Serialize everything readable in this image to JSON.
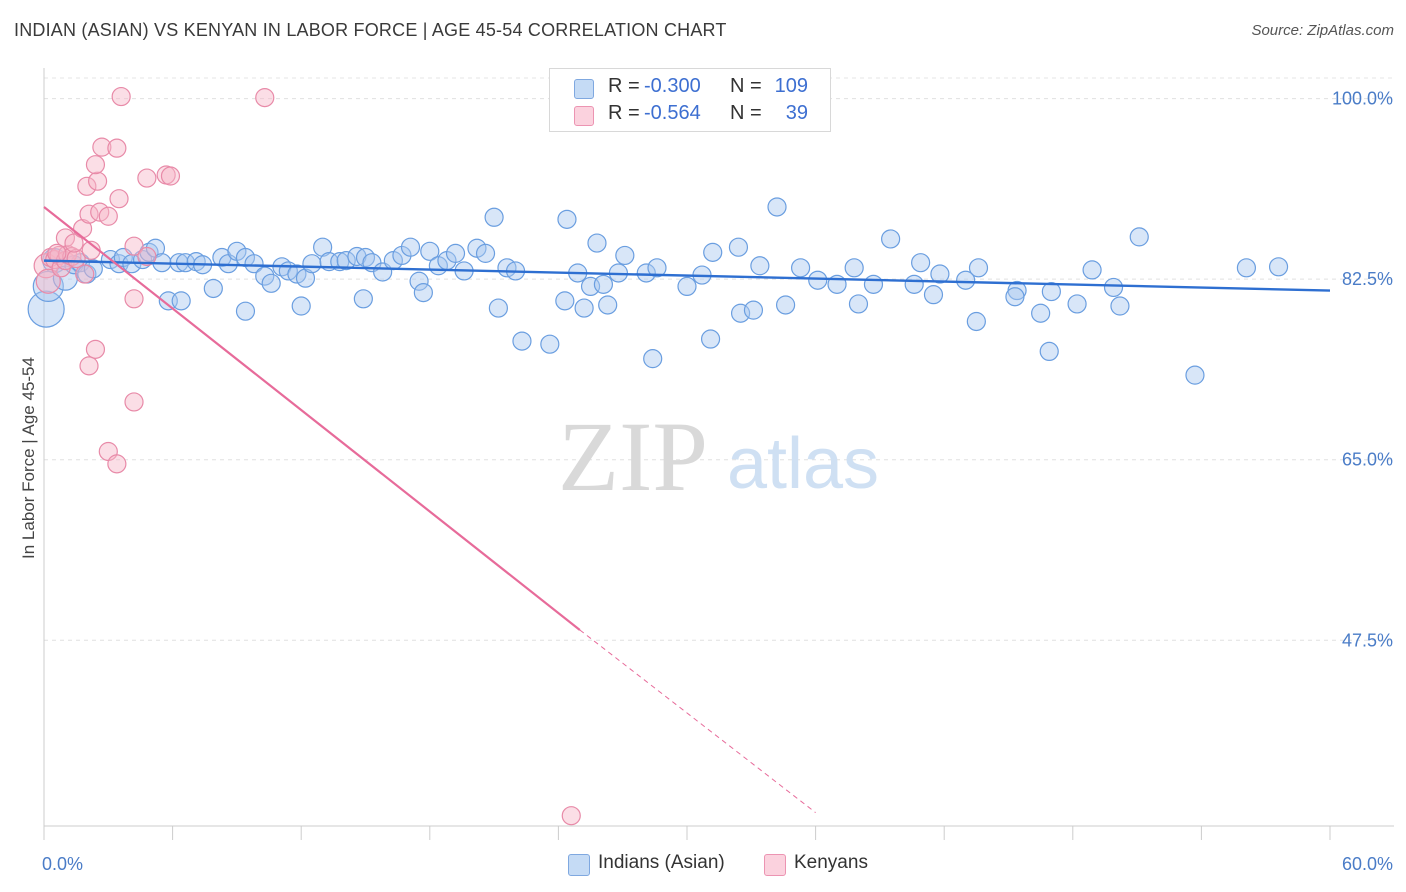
{
  "title": "INDIAN (ASIAN) VS KENYAN IN LABOR FORCE | AGE 45-54 CORRELATION CHART",
  "source": "Source: ZipAtlas.com",
  "watermark": {
    "zip": "ZIP",
    "atlas": "atlas"
  },
  "legend": {
    "rows": [
      {
        "r_label": "R =",
        "r_value": "-0.300",
        "n_label": "N =",
        "n_value": "109",
        "color": "#a8c8f0"
      },
      {
        "r_label": "R =",
        "r_value": "-0.564",
        "n_label": "N =",
        "n_value": "39",
        "color": "#f7b6c8"
      }
    ]
  },
  "bottom_legend": [
    {
      "label": "Indians (Asian)",
      "color": "#a8c8f0"
    },
    {
      "label": "Kenyans",
      "color": "#f7b6c8"
    }
  ],
  "chart_data": {
    "type": "scatter",
    "title": "INDIAN (ASIAN) VS KENYAN IN LABOR FORCE | AGE 45-54 CORRELATION CHART",
    "xlabel": "",
    "ylabel": "In Labor Force | Age 45-54",
    "xlim": [
      0,
      60
    ],
    "ylim": [
      29.5,
      102
    ],
    "x_tick_labels": [
      "0.0%",
      "60.0%"
    ],
    "y_ticks": [
      47.5,
      65.0,
      82.5,
      100.0
    ],
    "y_tick_labels": [
      "47.5%",
      "65.0%",
      "82.5%",
      "100.0%"
    ],
    "grid": true,
    "legend_position": "top-center",
    "series": [
      {
        "name": "Indians (Asian)",
        "color": "#a8c8f0",
        "stroke": "#6a9ee0",
        "trend": {
          "x": [
            0,
            60
          ],
          "y": [
            84.3,
            81.4
          ],
          "color": "#2e6fd1"
        },
        "points": [
          [
            0.1,
            79.6,
            4
          ],
          [
            0.2,
            81.8,
            3
          ],
          [
            0.5,
            84.3,
            2
          ],
          [
            1.0,
            82.6,
            2
          ],
          [
            1.4,
            83.9,
            1
          ],
          [
            1.7,
            84.1,
            1
          ],
          [
            2.0,
            83.0,
            1
          ],
          [
            2.3,
            83.5,
            1
          ],
          [
            3.1,
            84.4,
            1
          ],
          [
            3.5,
            84.0,
            1
          ],
          [
            3.7,
            84.6,
            1
          ],
          [
            4.1,
            84.0,
            1
          ],
          [
            4.6,
            84.4,
            1
          ],
          [
            4.9,
            85.1,
            1
          ],
          [
            5.2,
            85.5,
            1
          ],
          [
            5.5,
            84.1,
            1
          ],
          [
            5.8,
            80.4,
            1
          ],
          [
            6.3,
            84.1,
            1
          ],
          [
            6.6,
            84.1,
            1
          ],
          [
            7.1,
            84.2,
            1
          ],
          [
            7.4,
            83.9,
            1
          ],
          [
            7.9,
            81.6,
            1
          ],
          [
            8.3,
            84.6,
            1
          ],
          [
            8.6,
            84.0,
            1
          ],
          [
            9.0,
            85.2,
            1
          ],
          [
            9.4,
            84.6,
            1
          ],
          [
            9.8,
            84.0,
            1
          ],
          [
            10.3,
            82.8,
            1
          ],
          [
            10.6,
            82.1,
            1
          ],
          [
            11.1,
            83.7,
            1
          ],
          [
            11.4,
            83.3,
            1
          ],
          [
            11.8,
            83.0,
            1
          ],
          [
            12.2,
            82.6,
            1
          ],
          [
            12.5,
            84.0,
            1
          ],
          [
            13.0,
            85.6,
            1
          ],
          [
            13.3,
            84.2,
            1
          ],
          [
            13.8,
            84.2,
            1
          ],
          [
            14.1,
            84.3,
            1
          ],
          [
            14.6,
            84.7,
            1
          ],
          [
            15.0,
            84.6,
            1
          ],
          [
            15.3,
            84.1,
            1
          ],
          [
            15.8,
            83.2,
            1
          ],
          [
            16.3,
            84.3,
            1
          ],
          [
            16.7,
            84.8,
            1
          ],
          [
            17.1,
            85.6,
            1
          ],
          [
            17.5,
            82.3,
            1
          ],
          [
            18.0,
            85.2,
            1
          ],
          [
            18.4,
            83.8,
            1
          ],
          [
            18.8,
            84.3,
            1
          ],
          [
            19.2,
            85.0,
            1
          ],
          [
            19.6,
            83.3,
            1
          ],
          [
            20.2,
            85.5,
            1
          ],
          [
            20.6,
            85.0,
            1
          ],
          [
            21.0,
            88.5,
            1
          ],
          [
            21.6,
            83.6,
            1
          ],
          [
            22.0,
            83.3,
            1
          ],
          [
            24.4,
            88.3,
            1
          ],
          [
            24.9,
            83.1,
            1
          ],
          [
            25.5,
            81.8,
            1
          ],
          [
            25.8,
            86.0,
            1
          ],
          [
            26.1,
            82.0,
            1
          ],
          [
            26.8,
            83.1,
            1
          ],
          [
            27.1,
            84.8,
            1
          ],
          [
            28.1,
            83.1,
            1
          ],
          [
            28.6,
            83.6,
            1
          ],
          [
            30.0,
            81.8,
            1
          ],
          [
            30.7,
            82.9,
            1
          ],
          [
            31.2,
            85.1,
            1
          ],
          [
            32.4,
            85.6,
            1
          ],
          [
            33.4,
            83.8,
            1
          ],
          [
            34.2,
            89.5,
            1
          ],
          [
            35.3,
            83.6,
            1
          ],
          [
            36.1,
            82.4,
            1
          ],
          [
            37.0,
            82.0,
            1
          ],
          [
            37.8,
            83.6,
            1
          ],
          [
            38.7,
            82.0,
            1
          ],
          [
            39.5,
            86.4,
            1
          ],
          [
            40.6,
            82.0,
            1
          ],
          [
            40.9,
            84.1,
            1
          ],
          [
            41.8,
            83.0,
            1
          ],
          [
            43.0,
            82.4,
            1
          ],
          [
            43.6,
            83.6,
            1
          ],
          [
            45.4,
            81.4,
            1
          ],
          [
            47.0,
            81.3,
            1
          ],
          [
            48.9,
            83.4,
            1
          ],
          [
            49.9,
            81.7,
            1
          ],
          [
            51.1,
            86.6,
            1
          ],
          [
            56.1,
            83.6,
            1
          ],
          [
            57.6,
            83.7,
            1
          ],
          [
            22.3,
            76.5,
            1
          ],
          [
            23.6,
            76.2,
            1
          ],
          [
            25.2,
            79.7,
            1
          ],
          [
            26.3,
            80.0,
            1
          ],
          [
            28.4,
            74.8,
            1
          ],
          [
            31.1,
            76.7,
            1
          ],
          [
            32.5,
            79.2,
            1
          ],
          [
            33.1,
            79.5,
            1
          ],
          [
            34.6,
            80.0,
            1
          ],
          [
            38.0,
            80.1,
            1
          ],
          [
            41.5,
            81.0,
            1
          ],
          [
            43.5,
            78.4,
            1
          ],
          [
            45.3,
            80.8,
            1
          ],
          [
            46.5,
            79.2,
            1
          ],
          [
            46.9,
            75.5,
            1
          ],
          [
            48.2,
            80.1,
            1
          ],
          [
            50.2,
            79.9,
            1
          ],
          [
            53.7,
            73.2,
            1
          ],
          [
            6.4,
            80.4,
            1
          ],
          [
            9.4,
            79.4,
            1
          ],
          [
            12.0,
            79.9,
            1
          ],
          [
            14.9,
            80.6,
            1
          ],
          [
            17.7,
            81.2,
            1
          ],
          [
            21.2,
            79.7,
            1
          ],
          [
            24.3,
            80.4,
            1
          ]
        ]
      },
      {
        "name": "Kenyans",
        "color": "#f7b6c8",
        "stroke": "#e88aa8",
        "trend": {
          "x": [
            0,
            25
          ],
          "y": [
            89.5,
            48.5
          ],
          "dashed_to": [
            36.0,
            30.8
          ],
          "color": "#e76b9a"
        },
        "points": [
          [
            0.1,
            83.8,
            2
          ],
          [
            0.2,
            82.3,
            2
          ],
          [
            0.3,
            84.6,
            1
          ],
          [
            0.5,
            84.4,
            1
          ],
          [
            0.7,
            84.8,
            1
          ],
          [
            0.8,
            83.6,
            1
          ],
          [
            1.0,
            84.3,
            1
          ],
          [
            1.1,
            84.9,
            1
          ],
          [
            1.3,
            84.7,
            1
          ],
          [
            1.5,
            84.5,
            1
          ],
          [
            1.9,
            83.0,
            1
          ],
          [
            1.0,
            86.5,
            1
          ],
          [
            1.4,
            86.0,
            1
          ],
          [
            1.8,
            87.4,
            1
          ],
          [
            2.1,
            88.8,
            1
          ],
          [
            2.6,
            89.0,
            1
          ],
          [
            2.0,
            91.5,
            1
          ],
          [
            2.5,
            92.0,
            1
          ],
          [
            3.0,
            88.6,
            1
          ],
          [
            3.5,
            90.3,
            1
          ],
          [
            2.4,
            93.6,
            1
          ],
          [
            2.7,
            95.3,
            1
          ],
          [
            3.4,
            95.2,
            1
          ],
          [
            4.8,
            92.3,
            1
          ],
          [
            5.7,
            92.6,
            1
          ],
          [
            5.9,
            92.5,
            1
          ],
          [
            3.6,
            100.2,
            1
          ],
          [
            10.3,
            100.1,
            1
          ],
          [
            4.2,
            85.7,
            1
          ],
          [
            4.8,
            84.7,
            1
          ],
          [
            4.2,
            80.6,
            1
          ],
          [
            2.4,
            75.7,
            1
          ],
          [
            2.1,
            74.1,
            1
          ],
          [
            4.2,
            70.6,
            1
          ],
          [
            3.0,
            65.8,
            1
          ],
          [
            3.4,
            64.6,
            1
          ],
          [
            24.6,
            30.5,
            1
          ],
          [
            2.2,
            85.3,
            1
          ],
          [
            0.6,
            85.0,
            1
          ]
        ]
      }
    ]
  }
}
